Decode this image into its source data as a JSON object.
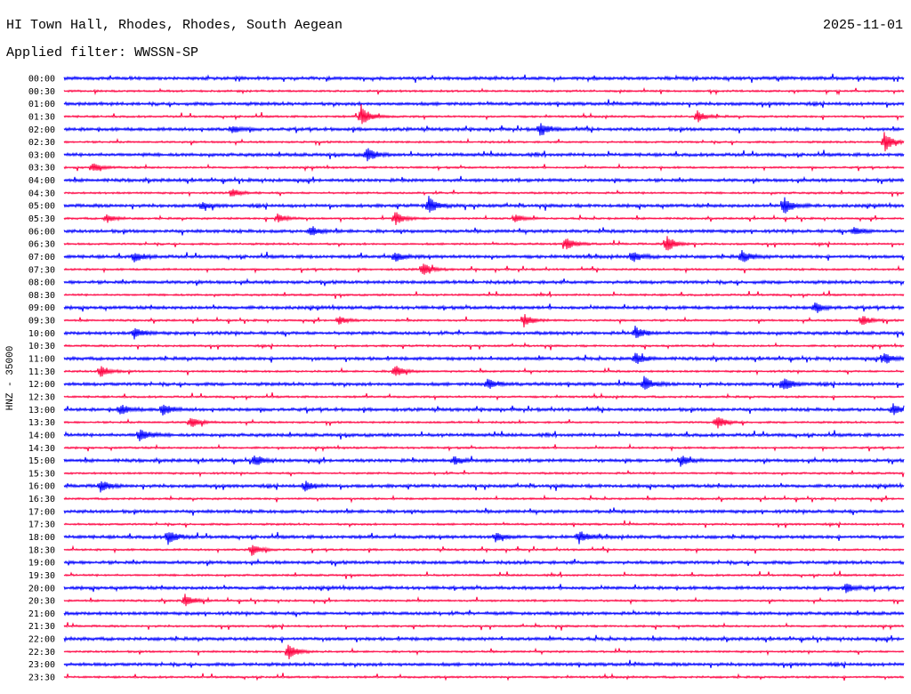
{
  "header": {
    "title": "HI Town Hall, Rhodes, Rhodes, South Aegean",
    "date": "2025-11-01",
    "filter": "Applied filter: WWSSN-SP"
  },
  "chart_data": {
    "type": "line",
    "title": "HI Town Hall, Rhodes, Rhodes, South Aegean",
    "subtitle": "Applied filter: WWSSN-SP",
    "ylabel": "HNZ - 35000",
    "xlabel": "",
    "minutes_per_row": 30,
    "colors": [
      "#0000ff",
      "#ff0040"
    ],
    "rows": [
      "00:00",
      "00:30",
      "01:00",
      "01:30",
      "02:00",
      "02:30",
      "03:00",
      "03:30",
      "04:00",
      "04:30",
      "05:00",
      "05:30",
      "06:00",
      "06:30",
      "07:00",
      "07:30",
      "08:00",
      "08:30",
      "09:00",
      "09:30",
      "10:00",
      "10:30",
      "11:00",
      "11:30",
      "12:00",
      "12:30",
      "13:00",
      "13:30",
      "14:00",
      "14:30",
      "15:00",
      "15:30",
      "16:00",
      "16:30",
      "17:00",
      "17:30",
      "18:00",
      "18:30",
      "19:00",
      "19:30",
      "20:00",
      "20:30",
      "21:00",
      "21:30",
      "22:00",
      "22:30",
      "23:00",
      "23:30"
    ],
    "events": [
      {
        "row": "01:30",
        "minute": 10.6,
        "amp": 14
      },
      {
        "row": "01:30",
        "minute": 22.6,
        "amp": 7
      },
      {
        "row": "02:00",
        "minute": 17.0,
        "amp": 8
      },
      {
        "row": "02:00",
        "minute": 6.0,
        "amp": 4
      },
      {
        "row": "02:30",
        "minute": 29.3,
        "amp": 12
      },
      {
        "row": "03:00",
        "minute": 10.8,
        "amp": 8
      },
      {
        "row": "03:30",
        "minute": 1.0,
        "amp": 6
      },
      {
        "row": "04:30",
        "minute": 6.0,
        "amp": 5
      },
      {
        "row": "05:00",
        "minute": 13.0,
        "amp": 11
      },
      {
        "row": "05:00",
        "minute": 25.7,
        "amp": 11
      },
      {
        "row": "05:00",
        "minute": 4.9,
        "amp": 4
      },
      {
        "row": "05:30",
        "minute": 1.5,
        "amp": 5
      },
      {
        "row": "05:30",
        "minute": 7.6,
        "amp": 6
      },
      {
        "row": "05:30",
        "minute": 11.8,
        "amp": 9
      },
      {
        "row": "05:30",
        "minute": 16.1,
        "amp": 5
      },
      {
        "row": "06:00",
        "minute": 8.8,
        "amp": 6
      },
      {
        "row": "06:00",
        "minute": 28.2,
        "amp": 5
      },
      {
        "row": "06:30",
        "minute": 17.9,
        "amp": 8
      },
      {
        "row": "06:30",
        "minute": 21.5,
        "amp": 11
      },
      {
        "row": "07:00",
        "minute": 2.5,
        "amp": 6
      },
      {
        "row": "07:00",
        "minute": 11.8,
        "amp": 6
      },
      {
        "row": "07:00",
        "minute": 20.3,
        "amp": 6
      },
      {
        "row": "07:00",
        "minute": 24.2,
        "amp": 8
      },
      {
        "row": "07:30",
        "minute": 12.8,
        "amp": 8
      },
      {
        "row": "09:00",
        "minute": 26.8,
        "amp": 6
      },
      {
        "row": "09:30",
        "minute": 9.8,
        "amp": 5
      },
      {
        "row": "09:30",
        "minute": 16.4,
        "amp": 8
      },
      {
        "row": "09:30",
        "minute": 28.5,
        "amp": 7
      },
      {
        "row": "10:00",
        "minute": 2.5,
        "amp": 6
      },
      {
        "row": "10:00",
        "minute": 20.4,
        "amp": 7
      },
      {
        "row": "11:00",
        "minute": 20.4,
        "amp": 7
      },
      {
        "row": "11:00",
        "minute": 29.3,
        "amp": 7
      },
      {
        "row": "11:30",
        "minute": 1.3,
        "amp": 7
      },
      {
        "row": "11:30",
        "minute": 11.8,
        "amp": 8
      },
      {
        "row": "12:00",
        "minute": 15.1,
        "amp": 7
      },
      {
        "row": "12:00",
        "minute": 20.7,
        "amp": 8
      },
      {
        "row": "12:00",
        "minute": 25.7,
        "amp": 8
      },
      {
        "row": "13:00",
        "minute": 2.0,
        "amp": 6
      },
      {
        "row": "13:00",
        "minute": 3.5,
        "amp": 7
      },
      {
        "row": "13:00",
        "minute": 29.6,
        "amp": 7
      },
      {
        "row": "13:30",
        "minute": 4.5,
        "amp": 7
      },
      {
        "row": "13:30",
        "minute": 23.3,
        "amp": 8
      },
      {
        "row": "14:00",
        "minute": 2.7,
        "amp": 8
      },
      {
        "row": "15:00",
        "minute": 6.8,
        "amp": 6
      },
      {
        "row": "15:00",
        "minute": 13.9,
        "amp": 6
      },
      {
        "row": "15:00",
        "minute": 22.0,
        "amp": 7
      },
      {
        "row": "16:00",
        "minute": 1.3,
        "amp": 6
      },
      {
        "row": "16:00",
        "minute": 8.6,
        "amp": 6
      },
      {
        "row": "18:00",
        "minute": 3.7,
        "amp": 9
      },
      {
        "row": "18:00",
        "minute": 15.4,
        "amp": 6
      },
      {
        "row": "18:00",
        "minute": 18.4,
        "amp": 7
      },
      {
        "row": "18:30",
        "minute": 6.7,
        "amp": 7
      },
      {
        "row": "20:00",
        "minute": 27.9,
        "amp": 6
      },
      {
        "row": "20:30",
        "minute": 4.3,
        "amp": 8
      },
      {
        "row": "22:30",
        "minute": 8.0,
        "amp": 10
      }
    ]
  }
}
